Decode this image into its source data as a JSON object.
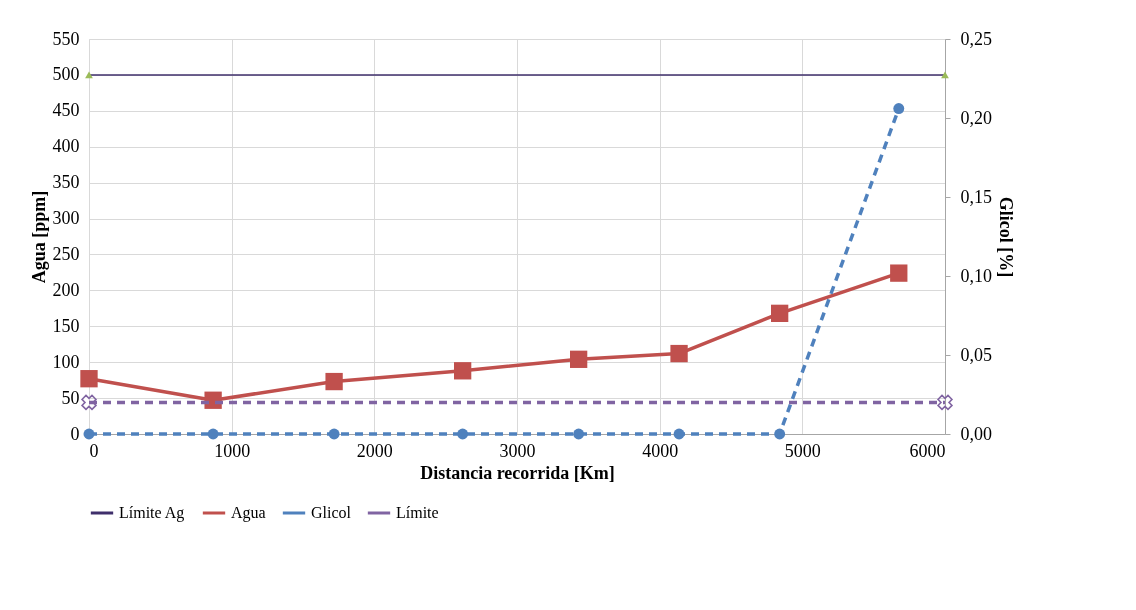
{
  "chart_data": {
    "type": "line",
    "xlabel": "Distancia recorrida [Km]",
    "ylabel": "Agua [ppm]",
    "y2label": "Glicol [%]",
    "xlim": [
      0,
      6000
    ],
    "xticks": [
      0,
      1000,
      2000,
      3000,
      4000,
      5000,
      6000
    ],
    "ylim": [
      0,
      550
    ],
    "yticks": [
      0,
      50,
      100,
      150,
      200,
      250,
      300,
      350,
      400,
      450,
      500,
      550
    ],
    "y2lim": [
      0,
      0.25
    ],
    "y2ticks": [
      {
        "value": 0,
        "label": "0,00"
      },
      {
        "value": 0.05,
        "label": "0,05"
      },
      {
        "value": 0.1,
        "label": "0,10"
      },
      {
        "value": 0.15,
        "label": "0,15"
      },
      {
        "value": 0.2,
        "label": "0,20"
      },
      {
        "value": 0.25,
        "label": "0,25"
      }
    ],
    "grid": true,
    "legend": "bottom",
    "series": [
      {
        "name": "Límite Ag",
        "color": "#3f2f6b",
        "marker": "triangle",
        "line_style": "solid",
        "x": [
          0,
          6000
        ],
        "values": [
          500,
          500
        ]
      },
      {
        "name": "Agua",
        "color": "#c0504d",
        "marker": "square",
        "line_style": "solid",
        "x": [
          0,
          870,
          1718,
          2619,
          3432,
          4136,
          4841,
          5676
        ],
        "values": [
          77,
          47,
          73,
          88,
          104,
          112,
          168,
          224
        ]
      },
      {
        "name": "Glicol",
        "color": "#4f81bd",
        "marker": "circle",
        "line_style": "dashed",
        "axis": "y2",
        "x": [
          0,
          870,
          1718,
          2619,
          3432,
          4136,
          4841,
          5676
        ],
        "values": [
          0,
          0,
          0,
          0,
          0,
          0,
          0,
          0.206
        ]
      },
      {
        "name": "Límite",
        "color": "#8064a2",
        "marker": "cross",
        "line_style": "dashed",
        "axis": "y2",
        "x": [
          0,
          6000
        ],
        "values": [
          0.02,
          0.02
        ]
      }
    ]
  }
}
